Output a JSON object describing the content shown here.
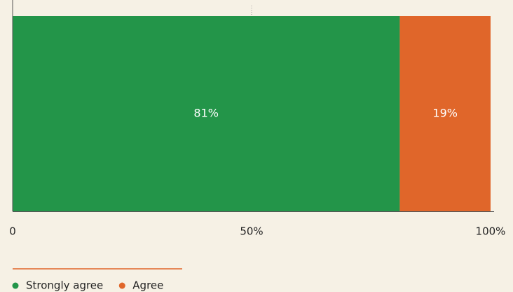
{
  "chart_data": {
    "type": "stacked_bar_horizontal",
    "categories": [
      null
    ],
    "series": [
      {
        "name": "Strongly agree",
        "color": "#239549",
        "values": [
          81
        ],
        "value_labels": [
          "81%"
        ]
      },
      {
        "name": "Agree",
        "color": "#e0662a",
        "values": [
          19
        ],
        "value_labels": [
          "19%"
        ]
      }
    ],
    "xlim": [
      0,
      100
    ],
    "xticks": [
      0,
      {
        "value": 50,
        "label": "50%"
      },
      {
        "value": 100,
        "label": "100%"
      }
    ],
    "grid": true,
    "legend": "bottom"
  }
}
